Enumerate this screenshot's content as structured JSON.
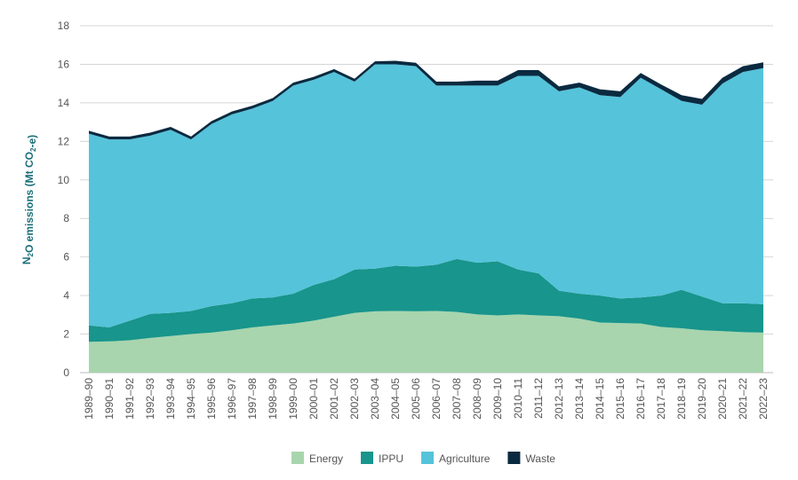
{
  "chart_data": {
    "type": "area",
    "stacked": true,
    "ylabel": "N2O emissions (Mt CO2-e)",
    "ylim": [
      0,
      18
    ],
    "yticks": [
      0,
      2,
      4,
      6,
      8,
      10,
      12,
      14,
      16,
      18
    ],
    "grid": true,
    "legend_position": "bottom",
    "categories": [
      "1989–90",
      "1990–91",
      "1991–92",
      "1992–93",
      "1993–94",
      "1994–95",
      "1995–96",
      "1996–97",
      "1997–98",
      "1998–99",
      "1999–00",
      "2000–01",
      "2001–02",
      "2002–03",
      "2003–04",
      "2004–05",
      "2005–06",
      "2006–07",
      "2007–08",
      "2008–09",
      "2009–10",
      "2010–11",
      "2011–12",
      "2012–13",
      "2013–14",
      "2014–15",
      "2015–16",
      "2016–17",
      "2017–18",
      "2018–19",
      "2019–20",
      "2020–21",
      "2021–22",
      "2022–23"
    ],
    "series": [
      {
        "name": "Energy",
        "color": "#a8d5ad",
        "values": [
          1.6,
          1.62,
          1.68,
          1.8,
          1.9,
          2.0,
          2.08,
          2.2,
          2.35,
          2.45,
          2.55,
          2.7,
          2.9,
          3.1,
          3.18,
          3.2,
          3.18,
          3.2,
          3.15,
          3.02,
          2.97,
          3.02,
          2.97,
          2.93,
          2.8,
          2.6,
          2.57,
          2.55,
          2.37,
          2.3,
          2.2,
          2.15,
          2.1,
          2.08
        ]
      },
      {
        "name": "IPPU",
        "color": "#18958c",
        "values": [
          0.85,
          0.73,
          1.02,
          1.25,
          1.2,
          1.2,
          1.37,
          1.4,
          1.5,
          1.45,
          1.55,
          1.85,
          1.95,
          2.25,
          2.22,
          2.35,
          2.32,
          2.4,
          2.75,
          2.68,
          2.81,
          2.33,
          2.18,
          1.32,
          1.3,
          1.4,
          1.28,
          1.35,
          1.63,
          2.0,
          1.75,
          1.45,
          1.5,
          1.47
        ]
      },
      {
        "name": "Agriculture",
        "color": "#55c3da",
        "values": [
          9.95,
          9.75,
          9.4,
          9.25,
          9.5,
          8.9,
          9.45,
          9.8,
          9.85,
          10.2,
          10.8,
          10.65,
          10.75,
          9.75,
          10.6,
          10.45,
          10.4,
          9.3,
          9.0,
          9.2,
          9.12,
          10.05,
          10.25,
          10.35,
          10.7,
          10.4,
          10.45,
          11.4,
          10.7,
          9.8,
          9.95,
          11.4,
          12.0,
          12.25
        ]
      },
      {
        "name": "Waste",
        "color": "#0a2a40",
        "values": [
          0.15,
          0.15,
          0.15,
          0.15,
          0.15,
          0.15,
          0.15,
          0.15,
          0.15,
          0.15,
          0.15,
          0.15,
          0.15,
          0.15,
          0.15,
          0.18,
          0.18,
          0.2,
          0.2,
          0.25,
          0.25,
          0.3,
          0.3,
          0.25,
          0.25,
          0.3,
          0.3,
          0.25,
          0.25,
          0.3,
          0.3,
          0.3,
          0.3,
          0.3
        ]
      }
    ]
  }
}
